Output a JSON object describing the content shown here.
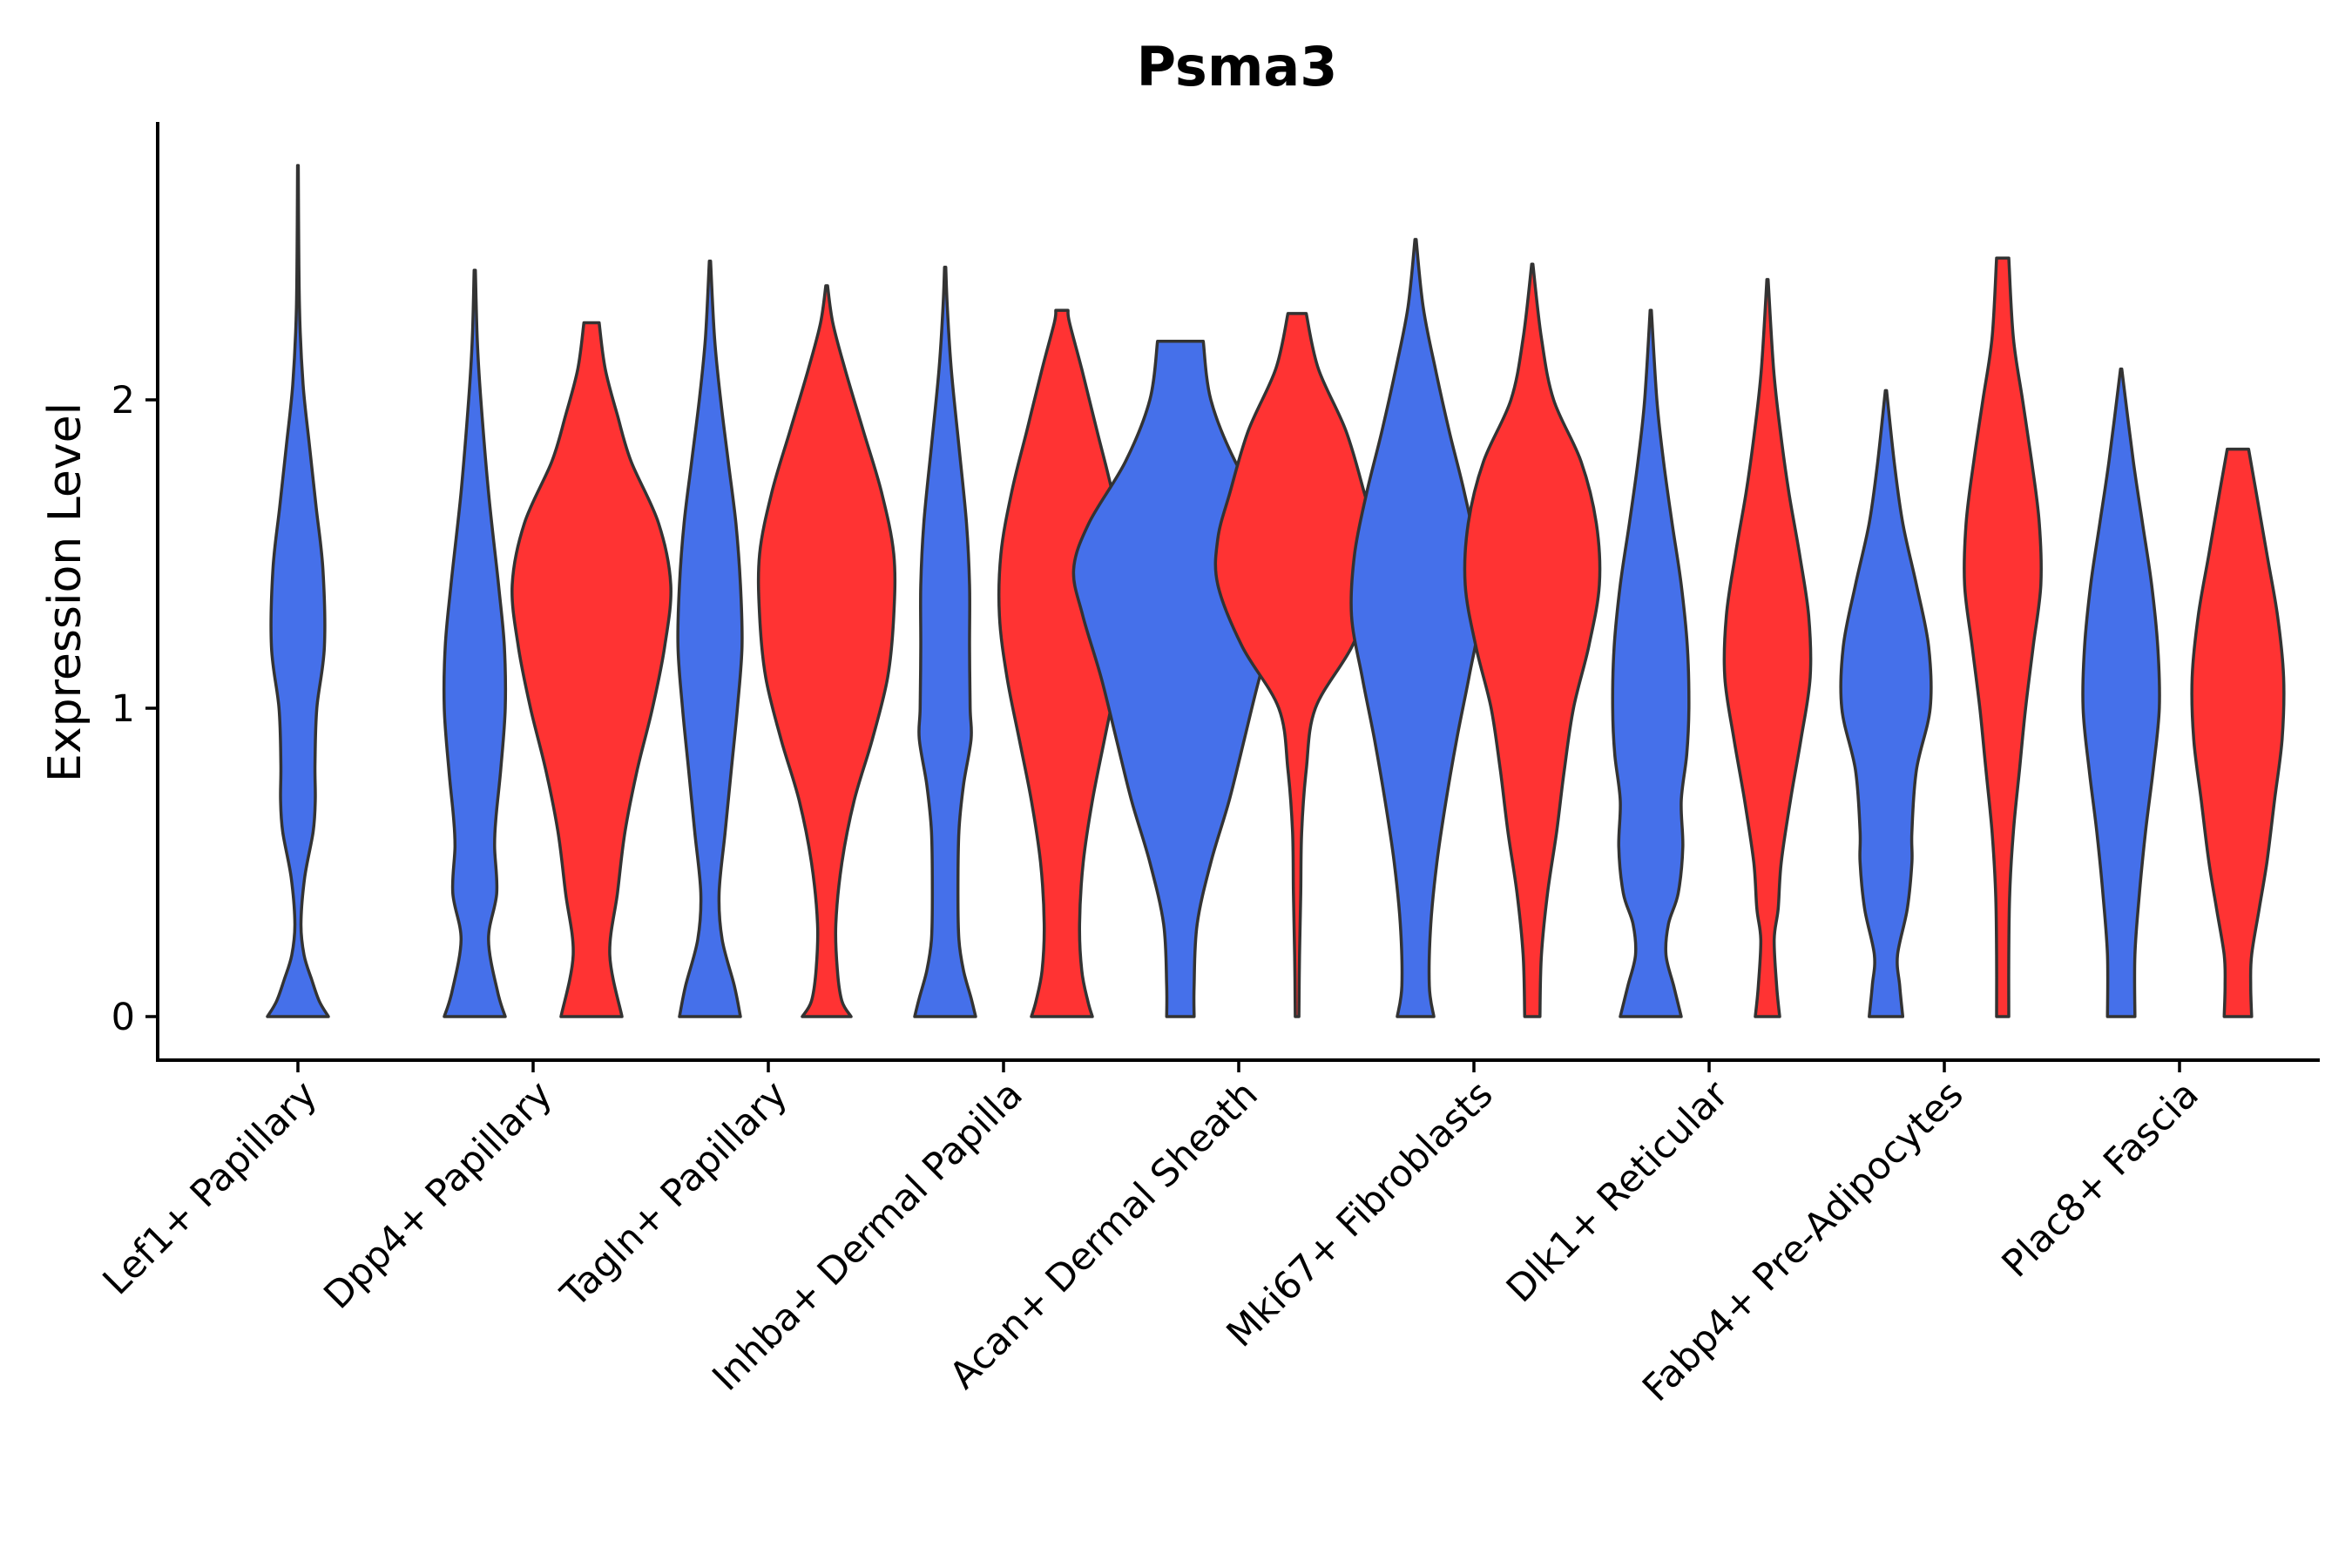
{
  "chart_data": {
    "type": "violin",
    "title": "Psma3",
    "xlabel": "",
    "ylabel": "Expression Level",
    "ylim": [
      -0.14,
      2.9
    ],
    "yticks": [
      0,
      1,
      2
    ],
    "grid": false,
    "legend": "none",
    "colors": {
      "group_a": "#4570EA",
      "group_b": "#FF3333",
      "outline": "#333333"
    },
    "categories": [
      "Lef1+ Papillary",
      "Dpp4+ Papillary",
      "Tagln+ Papillary",
      "Inhba+ Dermal Papilla",
      "Acan+ Dermal Sheath",
      "Mki67+ Fibroblasts",
      "Dlk1+ Reticular",
      "Fabp4+ Pre-Adipocytes",
      "Plac8+ Fascia"
    ],
    "violins": [
      {
        "category": "Lef1+ Papillary",
        "group": "a",
        "max": 2.76,
        "profile": [
          [
            0,
            1.0
          ],
          [
            0.05,
            0.7
          ],
          [
            0.12,
            0.45
          ],
          [
            0.2,
            0.2
          ],
          [
            0.3,
            0.1
          ],
          [
            0.45,
            0.22
          ],
          [
            0.6,
            0.5
          ],
          [
            0.7,
            0.57
          ],
          [
            0.82,
            0.56
          ],
          [
            1.0,
            0.62
          ],
          [
            1.2,
            0.87
          ],
          [
            1.45,
            0.82
          ],
          [
            1.65,
            0.6
          ],
          [
            1.85,
            0.38
          ],
          [
            2.05,
            0.17
          ],
          [
            2.3,
            0.05
          ],
          [
            2.76,
            0.01
          ]
        ]
      },
      {
        "category": "Dpp4+ Papillary",
        "group": "a",
        "max": 2.42,
        "profile": [
          [
            0,
            1.0
          ],
          [
            0.08,
            0.75
          ],
          [
            0.25,
            0.45
          ],
          [
            0.4,
            0.72
          ],
          [
            0.55,
            0.65
          ],
          [
            0.65,
            0.7
          ],
          [
            0.8,
            0.85
          ],
          [
            1.0,
            1.0
          ],
          [
            1.2,
            0.97
          ],
          [
            1.4,
            0.78
          ],
          [
            1.7,
            0.45
          ],
          [
            2.0,
            0.2
          ],
          [
            2.2,
            0.08
          ],
          [
            2.42,
            0.02
          ]
        ]
      },
      {
        "category": "Dpp4+ Papillary",
        "group": "b",
        "max": 2.25,
        "profile": [
          [
            0,
            1.0
          ],
          [
            0.2,
            0.6
          ],
          [
            0.4,
            0.85
          ],
          [
            0.6,
            1.1
          ],
          [
            0.8,
            1.5
          ],
          [
            1.0,
            2.0
          ],
          [
            1.2,
            2.4
          ],
          [
            1.4,
            2.6
          ],
          [
            1.6,
            2.2
          ],
          [
            1.8,
            1.3
          ],
          [
            1.95,
            0.85
          ],
          [
            2.1,
            0.45
          ],
          [
            2.25,
            0.25
          ]
        ]
      },
      {
        "category": "Tagln+ Papillary",
        "group": "a",
        "max": 2.45,
        "profile": [
          [
            0,
            1.0
          ],
          [
            0.1,
            0.8
          ],
          [
            0.25,
            0.4
          ],
          [
            0.4,
            0.3
          ],
          [
            0.6,
            0.5
          ],
          [
            0.8,
            0.7
          ],
          [
            1.0,
            0.9
          ],
          [
            1.2,
            1.05
          ],
          [
            1.4,
            1.0
          ],
          [
            1.6,
            0.85
          ],
          [
            1.8,
            0.6
          ],
          [
            2.0,
            0.35
          ],
          [
            2.2,
            0.15
          ],
          [
            2.45,
            0.02
          ]
        ]
      },
      {
        "category": "Tagln+ Papillary",
        "group": "b",
        "max": 2.37,
        "profile": [
          [
            0,
            0.8
          ],
          [
            0.05,
            0.5
          ],
          [
            0.15,
            0.35
          ],
          [
            0.3,
            0.3
          ],
          [
            0.5,
            0.5
          ],
          [
            0.7,
            0.9
          ],
          [
            0.9,
            1.5
          ],
          [
            1.1,
            2.0
          ],
          [
            1.3,
            2.2
          ],
          [
            1.5,
            2.2
          ],
          [
            1.7,
            1.8
          ],
          [
            1.9,
            1.2
          ],
          [
            2.1,
            0.6
          ],
          [
            2.25,
            0.2
          ],
          [
            2.37,
            0.03
          ]
        ]
      },
      {
        "category": "Inhba+ Dermal Papilla",
        "group": "a",
        "max": 2.43,
        "profile": [
          [
            0,
            1.0
          ],
          [
            0.06,
            0.85
          ],
          [
            0.15,
            0.6
          ],
          [
            0.25,
            0.45
          ],
          [
            0.4,
            0.42
          ],
          [
            0.6,
            0.45
          ],
          [
            0.75,
            0.6
          ],
          [
            0.9,
            0.85
          ],
          [
            1.0,
            0.82
          ],
          [
            1.2,
            0.8
          ],
          [
            1.4,
            0.8
          ],
          [
            1.6,
            0.7
          ],
          [
            1.85,
            0.45
          ],
          [
            2.1,
            0.2
          ],
          [
            2.3,
            0.07
          ],
          [
            2.43,
            0.02
          ]
        ]
      },
      {
        "category": "Inhba+ Dermal Papilla",
        "group": "b",
        "max": 2.29,
        "profile": [
          [
            0,
            1.0
          ],
          [
            0.05,
            0.85
          ],
          [
            0.15,
            0.65
          ],
          [
            0.3,
            0.58
          ],
          [
            0.5,
            0.7
          ],
          [
            0.7,
            1.0
          ],
          [
            0.9,
            1.4
          ],
          [
            1.1,
            1.8
          ],
          [
            1.3,
            2.05
          ],
          [
            1.5,
            2.0
          ],
          [
            1.7,
            1.65
          ],
          [
            1.9,
            1.15
          ],
          [
            2.1,
            0.65
          ],
          [
            2.25,
            0.25
          ],
          [
            2.29,
            0.2
          ]
        ]
      },
      {
        "category": "Acan+ Dermal Sheath",
        "group": "a",
        "max": 2.19,
        "profile": [
          [
            0,
            0.45
          ],
          [
            0.1,
            0.45
          ],
          [
            0.3,
            0.55
          ],
          [
            0.5,
            1.0
          ],
          [
            0.7,
            1.6
          ],
          [
            0.9,
            2.1
          ],
          [
            1.1,
            2.6
          ],
          [
            1.3,
            3.2
          ],
          [
            1.45,
            3.5
          ],
          [
            1.6,
            3.0
          ],
          [
            1.8,
            1.8
          ],
          [
            2.0,
            1.0
          ],
          [
            2.19,
            0.75
          ]
        ]
      },
      {
        "category": "Acan+ Dermal Sheath",
        "group": "b",
        "max": 2.28,
        "profile": [
          [
            0,
            0.06
          ],
          [
            0.2,
            0.08
          ],
          [
            0.4,
            0.12
          ],
          [
            0.6,
            0.15
          ],
          [
            0.8,
            0.3
          ],
          [
            1.0,
            0.6
          ],
          [
            1.2,
            1.8
          ],
          [
            1.4,
            2.6
          ],
          [
            1.55,
            2.6
          ],
          [
            1.7,
            2.2
          ],
          [
            1.9,
            1.6
          ],
          [
            2.1,
            0.7
          ],
          [
            2.28,
            0.3
          ]
        ]
      },
      {
        "category": "Mki67+ Fibroblasts",
        "group": "a",
        "max": 2.52,
        "profile": [
          [
            0,
            0.6
          ],
          [
            0.1,
            0.45
          ],
          [
            0.3,
            0.5
          ],
          [
            0.5,
            0.7
          ],
          [
            0.7,
            1.0
          ],
          [
            0.9,
            1.35
          ],
          [
            1.1,
            1.75
          ],
          [
            1.3,
            2.1
          ],
          [
            1.5,
            2.0
          ],
          [
            1.7,
            1.6
          ],
          [
            1.9,
            1.1
          ],
          [
            2.1,
            0.65
          ],
          [
            2.3,
            0.25
          ],
          [
            2.52,
            0.02
          ]
        ]
      },
      {
        "category": "Mki67+ Fibroblasts",
        "group": "b",
        "max": 2.44,
        "profile": [
          [
            0,
            0.25
          ],
          [
            0.2,
            0.3
          ],
          [
            0.4,
            0.5
          ],
          [
            0.6,
            0.8
          ],
          [
            0.8,
            1.05
          ],
          [
            1.0,
            1.35
          ],
          [
            1.2,
            1.85
          ],
          [
            1.4,
            2.2
          ],
          [
            1.6,
            2.1
          ],
          [
            1.8,
            1.6
          ],
          [
            2.0,
            0.7
          ],
          [
            2.2,
            0.3
          ],
          [
            2.44,
            0.02
          ]
        ]
      },
      {
        "category": "Dlk1+ Reticular",
        "group": "a",
        "max": 2.29,
        "profile": [
          [
            0,
            1.0
          ],
          [
            0.1,
            0.75
          ],
          [
            0.2,
            0.5
          ],
          [
            0.3,
            0.58
          ],
          [
            0.4,
            0.9
          ],
          [
            0.55,
            1.05
          ],
          [
            0.7,
            1.0
          ],
          [
            0.85,
            1.18
          ],
          [
            1.0,
            1.25
          ],
          [
            1.2,
            1.2
          ],
          [
            1.4,
            1.0
          ],
          [
            1.6,
            0.7
          ],
          [
            1.8,
            0.42
          ],
          [
            2.0,
            0.2
          ],
          [
            2.29,
            0.02
          ]
        ]
      },
      {
        "category": "Dlk1+ Reticular",
        "group": "b",
        "max": 2.39,
        "profile": [
          [
            0,
            0.4
          ],
          [
            0.1,
            0.3
          ],
          [
            0.25,
            0.22
          ],
          [
            0.35,
            0.35
          ],
          [
            0.5,
            0.45
          ],
          [
            0.7,
            0.75
          ],
          [
            0.9,
            1.1
          ],
          [
            1.1,
            1.4
          ],
          [
            1.3,
            1.35
          ],
          [
            1.5,
            1.05
          ],
          [
            1.7,
            0.7
          ],
          [
            1.9,
            0.42
          ],
          [
            2.1,
            0.2
          ],
          [
            2.39,
            0.02
          ]
        ]
      },
      {
        "category": "Fabp4+ Pre-Adipocytes",
        "group": "a",
        "max": 2.03,
        "profile": [
          [
            0,
            0.55
          ],
          [
            0.1,
            0.45
          ],
          [
            0.2,
            0.38
          ],
          [
            0.35,
            0.7
          ],
          [
            0.5,
            0.85
          ],
          [
            0.6,
            0.85
          ],
          [
            0.8,
            1.0
          ],
          [
            1.0,
            1.45
          ],
          [
            1.2,
            1.4
          ],
          [
            1.4,
            1.0
          ],
          [
            1.6,
            0.55
          ],
          [
            1.8,
            0.27
          ],
          [
            2.03,
            0.02
          ]
        ]
      },
      {
        "category": "Fabp4+ Pre-Adipocytes",
        "group": "b",
        "max": 2.46,
        "profile": [
          [
            0,
            0.2
          ],
          [
            0.2,
            0.2
          ],
          [
            0.4,
            0.23
          ],
          [
            0.6,
            0.35
          ],
          [
            0.8,
            0.55
          ],
          [
            1.0,
            0.75
          ],
          [
            1.2,
            1.0
          ],
          [
            1.4,
            1.25
          ],
          [
            1.6,
            1.2
          ],
          [
            1.8,
            0.95
          ],
          [
            2.0,
            0.65
          ],
          [
            2.2,
            0.35
          ],
          [
            2.46,
            0.2
          ]
        ]
      },
      {
        "category": "Plac8+ Fascia",
        "group": "a",
        "max": 2.1,
        "profile": [
          [
            0,
            0.45
          ],
          [
            0.2,
            0.45
          ],
          [
            0.4,
            0.6
          ],
          [
            0.6,
            0.8
          ],
          [
            0.8,
            1.05
          ],
          [
            1.0,
            1.25
          ],
          [
            1.2,
            1.2
          ],
          [
            1.4,
            1.0
          ],
          [
            1.6,
            0.7
          ],
          [
            1.8,
            0.4
          ],
          [
            2.1,
            0.02
          ]
        ]
      },
      {
        "category": "Plac8+ Fascia",
        "group": "b",
        "max": 1.84,
        "profile": [
          [
            0,
            0.45
          ],
          [
            0.1,
            0.42
          ],
          [
            0.2,
            0.45
          ],
          [
            0.35,
            0.7
          ],
          [
            0.5,
            0.95
          ],
          [
            0.7,
            1.2
          ],
          [
            0.9,
            1.45
          ],
          [
            1.1,
            1.5
          ],
          [
            1.3,
            1.3
          ],
          [
            1.5,
            0.95
          ],
          [
            1.7,
            0.6
          ],
          [
            1.84,
            0.35
          ]
        ]
      }
    ]
  }
}
